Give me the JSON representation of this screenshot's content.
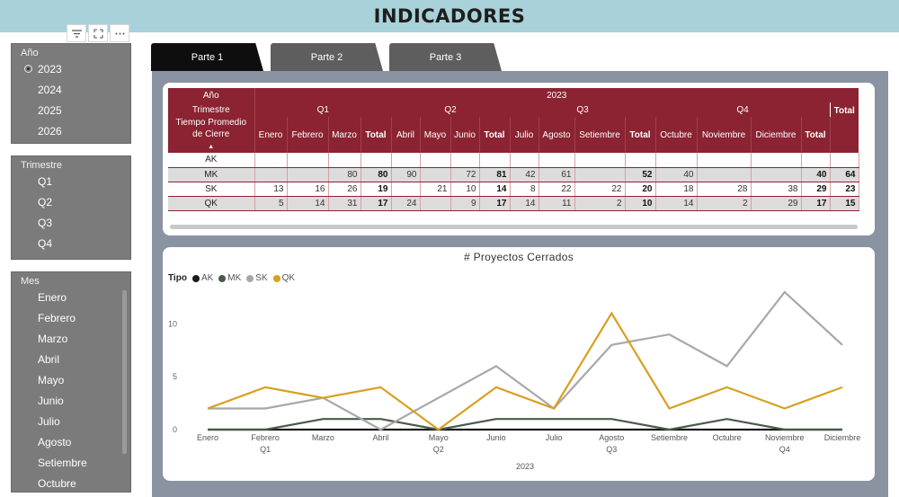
{
  "page": {
    "title": "INDICADORES"
  },
  "toolbar": {
    "icons": [
      "filter-icon",
      "focus-mode-icon",
      "more-options-icon"
    ]
  },
  "slicers": {
    "year": {
      "title": "Año",
      "options": [
        "2023",
        "2024",
        "2025",
        "2026"
      ],
      "selected": "2023"
    },
    "quarter": {
      "title": "Trimestre",
      "options": [
        "Q1",
        "Q2",
        "Q3",
        "Q4"
      ]
    },
    "month": {
      "title": "Mes",
      "options": [
        "Enero",
        "Febrero",
        "Marzo",
        "Abril",
        "Mayo",
        "Junio",
        "Julio",
        "Agosto",
        "Setiembre",
        "Octubre"
      ]
    }
  },
  "tabs": [
    {
      "label": "Parte 1",
      "active": true
    },
    {
      "label": "Parte 2",
      "active": false
    },
    {
      "label": "Parte 3",
      "active": false
    }
  ],
  "matrix": {
    "header_ano": "Año",
    "header_trimestre": "Trimestre",
    "header_measure": "Tiempo Promedio de Cierre",
    "year": "2023",
    "quarters": [
      {
        "label": "Q1",
        "months": [
          "Enero",
          "Febrero",
          "Marzo"
        ]
      },
      {
        "label": "Q2",
        "months": [
          "Abril",
          "Mayo",
          "Junio"
        ]
      },
      {
        "label": "Q3",
        "months": [
          "Julio",
          "Agosto",
          "Setiembre"
        ]
      },
      {
        "label": "Q4",
        "months": [
          "Octubre",
          "Noviembre",
          "Diciembre"
        ]
      }
    ],
    "total_label": "Total",
    "rows": [
      {
        "label": "AK",
        "cells": [
          "",
          "",
          "",
          "",
          "",
          "",
          "",
          "",
          "",
          "",
          "",
          "",
          "",
          "",
          "",
          "",
          ""
        ]
      },
      {
        "label": "MK",
        "cells": [
          "",
          "",
          "80",
          "80",
          "90",
          "",
          "72",
          "81",
          "42",
          "61",
          "",
          "52",
          "40",
          "",
          "",
          "40",
          "64"
        ]
      },
      {
        "label": "SK",
        "cells": [
          "13",
          "16",
          "26",
          "19",
          "",
          "21",
          "10",
          "14",
          "8",
          "22",
          "22",
          "20",
          "18",
          "28",
          "38",
          "29",
          "23"
        ]
      },
      {
        "label": "QK",
        "cells": [
          "5",
          "14",
          "31",
          "17",
          "24",
          "",
          "9",
          "17",
          "14",
          "11",
          "2",
          "10",
          "14",
          "2",
          "29",
          "17",
          "15"
        ]
      }
    ]
  },
  "chart": {
    "legend_title": "Tipo",
    "colors": {
      "AK": "#1a1a1a",
      "MK": "#4a5a4a",
      "SK": "#a8a8a8",
      "QK": "#d8a020"
    }
  },
  "chart_data": {
    "type": "line",
    "title": "# Proyectos Cerrados",
    "legend_position": "top-left",
    "grid": false,
    "x": [
      "Enero",
      "Febrero",
      "Marzo",
      "Abril",
      "Mayo",
      "Junio",
      "Julio",
      "Agosto",
      "Setiembre",
      "Octubre",
      "Noviembre",
      "Diciembre"
    ],
    "x_groups": [
      {
        "label": "Q1",
        "months": [
          "Enero",
          "Febrero",
          "Marzo"
        ]
      },
      {
        "label": "Q2",
        "months": [
          "Abril",
          "Mayo",
          "Junio"
        ]
      },
      {
        "label": "Q3",
        "months": [
          "Julio",
          "Agosto",
          "Setiembre"
        ]
      },
      {
        "label": "Q4",
        "months": [
          "Octubre",
          "Noviembre",
          "Diciembre"
        ]
      }
    ],
    "x_year": "2023",
    "yticks": [
      0,
      5,
      10
    ],
    "ylim": [
      0,
      13
    ],
    "series": [
      {
        "name": "AK",
        "values": [
          0,
          0,
          0,
          0,
          0,
          0,
          0,
          0,
          0,
          0,
          0,
          0
        ]
      },
      {
        "name": "MK",
        "values": [
          0,
          0,
          1,
          1,
          0,
          1,
          1,
          1,
          0,
          1,
          0,
          0
        ]
      },
      {
        "name": "SK",
        "values": [
          2,
          2,
          3,
          0,
          3,
          6,
          2,
          8,
          9,
          6,
          13,
          8
        ]
      },
      {
        "name": "QK",
        "values": [
          2,
          4,
          3,
          4,
          0,
          4,
          2,
          11,
          2,
          4,
          2,
          4
        ]
      }
    ]
  }
}
